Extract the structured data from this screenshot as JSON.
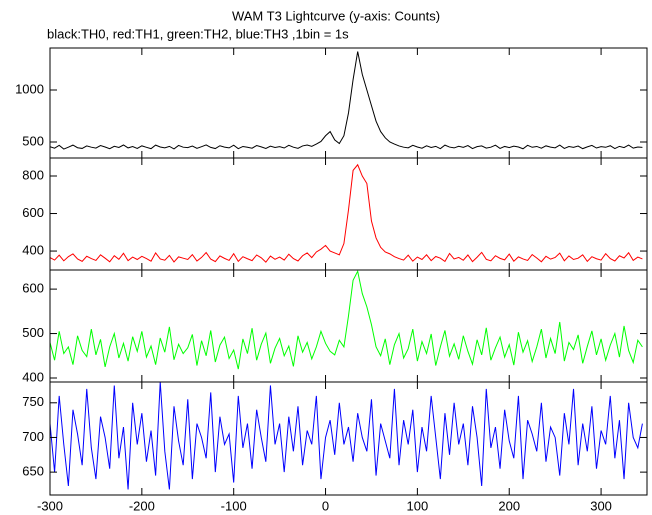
{
  "title": "WAM T3 Lightcurve (y-axis: Counts)",
  "subtitle": "black:TH0, red:TH1, green:TH2, blue:TH3 ,1bin = 1s",
  "chart_data": [
    {
      "type": "line",
      "color": "#000000",
      "xlim": [
        -300,
        350
      ],
      "ylim": [
        346,
        1404
      ],
      "yticks": [
        500,
        1000
      ],
      "x": [
        -300,
        -295,
        -290,
        -285,
        -280,
        -275,
        -270,
        -265,
        -260,
        -255,
        -250,
        -245,
        -240,
        -235,
        -230,
        -225,
        -220,
        -215,
        -210,
        -205,
        -200,
        -195,
        -190,
        -185,
        -180,
        -175,
        -170,
        -165,
        -160,
        -155,
        -150,
        -145,
        -140,
        -135,
        -130,
        -125,
        -120,
        -115,
        -110,
        -105,
        -100,
        -95,
        -90,
        -85,
        -80,
        -75,
        -70,
        -65,
        -60,
        -55,
        -50,
        -45,
        -40,
        -35,
        -30,
        -25,
        -20,
        -15,
        -10,
        -5,
        0,
        5,
        10,
        15,
        20,
        25,
        30,
        35,
        40,
        45,
        50,
        55,
        60,
        65,
        70,
        75,
        80,
        85,
        90,
        95,
        100,
        105,
        110,
        115,
        120,
        125,
        130,
        135,
        140,
        145,
        150,
        155,
        160,
        165,
        170,
        175,
        180,
        185,
        190,
        195,
        200,
        205,
        210,
        215,
        220,
        225,
        230,
        235,
        240,
        245,
        250,
        255,
        260,
        265,
        270,
        275,
        280,
        285,
        290,
        295,
        300,
        305,
        310,
        315,
        320,
        325,
        330,
        335,
        340,
        345
      ],
      "values": [
        455,
        440,
        468,
        432,
        450,
        470,
        445,
        438,
        462,
        450,
        441,
        466,
        452,
        435,
        459,
        447,
        471,
        443,
        456,
        438,
        463,
        449,
        436,
        470,
        452,
        444,
        458,
        433,
        467,
        450,
        446,
        461,
        439,
        455,
        472,
        448,
        437,
        464,
        451,
        443,
        469,
        436,
        457,
        449,
        440,
        466,
        453,
        438,
        460,
        447,
        455,
        442,
        468,
        450,
        439,
        462,
        471,
        458,
        480,
        505,
        560,
        600,
        520,
        485,
        560,
        780,
        1100,
        1370,
        1150,
        1000,
        850,
        700,
        600,
        540,
        500,
        480,
        462,
        450,
        444,
        468,
        452,
        440,
        463,
        447,
        458,
        436,
        470,
        451,
        443,
        459,
        448,
        466,
        437,
        455,
        462,
        441,
        450,
        469,
        438,
        457,
        446,
        460,
        452,
        435,
        468,
        449,
        457,
        440,
        463,
        451,
        444,
        470,
        438,
        456,
        448,
        461,
        436,
        453,
        467,
        442,
        455,
        449,
        464,
        437,
        458,
        446,
        470,
        441,
        452,
        448
      ]
    },
    {
      "type": "line",
      "color": "#ff0000",
      "xlim": [
        -300,
        350
      ],
      "ylim": [
        299,
        896
      ],
      "yticks": [
        400,
        600,
        800
      ],
      "x": [
        -300,
        -295,
        -290,
        -285,
        -280,
        -275,
        -270,
        -265,
        -260,
        -255,
        -250,
        -245,
        -240,
        -235,
        -230,
        -225,
        -220,
        -215,
        -210,
        -205,
        -200,
        -195,
        -190,
        -185,
        -180,
        -175,
        -170,
        -165,
        -160,
        -155,
        -150,
        -145,
        -140,
        -135,
        -130,
        -125,
        -120,
        -115,
        -110,
        -105,
        -100,
        -95,
        -90,
        -85,
        -80,
        -75,
        -70,
        -65,
        -60,
        -55,
        -50,
        -45,
        -40,
        -35,
        -30,
        -25,
        -20,
        -15,
        -10,
        -5,
        0,
        5,
        10,
        15,
        20,
        25,
        30,
        35,
        40,
        45,
        50,
        55,
        60,
        65,
        70,
        75,
        80,
        85,
        90,
        95,
        100,
        105,
        110,
        115,
        120,
        125,
        130,
        135,
        140,
        145,
        150,
        155,
        160,
        165,
        170,
        175,
        180,
        185,
        190,
        195,
        200,
        205,
        210,
        215,
        220,
        225,
        230,
        235,
        240,
        245,
        250,
        255,
        260,
        265,
        270,
        275,
        280,
        285,
        290,
        295,
        300,
        305,
        310,
        315,
        320,
        325,
        330,
        335,
        340,
        345
      ],
      "values": [
        365,
        352,
        378,
        348,
        370,
        385,
        358,
        345,
        372,
        360,
        350,
        380,
        362,
        343,
        375,
        356,
        388,
        349,
        368,
        355,
        372,
        360,
        346,
        390,
        358,
        351,
        377,
        342,
        369,
        362,
        355,
        381,
        347,
        366,
        392,
        357,
        344,
        374,
        361,
        350,
        386,
        345,
        370,
        359,
        349,
        379,
        364,
        341,
        373,
        356,
        368,
        352,
        383,
        360,
        347,
        375,
        390,
        365,
        395,
        410,
        430,
        400,
        390,
        380,
        440,
        620,
        830,
        860,
        800,
        760,
        560,
        470,
        420,
        395,
        385,
        370,
        360,
        352,
        378,
        346,
        368,
        355,
        380,
        349,
        371,
        362,
        345,
        387,
        358,
        366,
        351,
        379,
        344,
        367,
        393,
        356,
        348,
        375,
        361,
        353,
        384,
        346,
        369,
        358,
        350,
        381,
        363,
        343,
        372,
        357,
        366,
        389,
        348,
        374,
        355,
        362,
        380,
        345,
        370,
        359,
        352,
        386,
        360,
        347,
        375,
        363,
        391,
        350,
        368,
        358
      ]
    },
    {
      "type": "line",
      "color": "#00ff00",
      "xlim": [
        -300,
        350
      ],
      "ylim": [
        391,
        643
      ],
      "yticks": [
        400,
        500,
        600
      ],
      "x": [
        -300,
        -295,
        -290,
        -285,
        -280,
        -275,
        -270,
        -265,
        -260,
        -255,
        -250,
        -245,
        -240,
        -235,
        -230,
        -225,
        -220,
        -215,
        -210,
        -205,
        -200,
        -195,
        -190,
        -185,
        -180,
        -175,
        -170,
        -165,
        -160,
        -155,
        -150,
        -145,
        -140,
        -135,
        -130,
        -125,
        -120,
        -115,
        -110,
        -105,
        -100,
        -95,
        -90,
        -85,
        -80,
        -75,
        -70,
        -65,
        -60,
        -55,
        -50,
        -45,
        -40,
        -35,
        -30,
        -25,
        -20,
        -15,
        -10,
        -5,
        0,
        5,
        10,
        15,
        20,
        25,
        30,
        35,
        40,
        45,
        50,
        55,
        60,
        65,
        70,
        75,
        80,
        85,
        90,
        95,
        100,
        105,
        110,
        115,
        120,
        125,
        130,
        135,
        140,
        145,
        150,
        155,
        160,
        165,
        170,
        175,
        180,
        185,
        190,
        195,
        200,
        205,
        210,
        215,
        220,
        225,
        230,
        235,
        240,
        245,
        250,
        255,
        260,
        265,
        270,
        275,
        280,
        285,
        290,
        295,
        300,
        305,
        310,
        315,
        320,
        325,
        330,
        335,
        340,
        345
      ],
      "values": [
        480,
        440,
        505,
        455,
        470,
        430,
        495,
        462,
        448,
        510,
        452,
        487,
        425,
        470,
        500,
        445,
        478,
        438,
        493,
        460,
        505,
        447,
        472,
        430,
        490,
        458,
        515,
        441,
        476,
        455,
        468,
        498,
        428,
        484,
        450,
        507,
        436,
        474,
        492,
        444,
        463,
        420,
        488,
        455,
        512,
        440,
        476,
        501,
        433,
        467,
        489,
        450,
        472,
        426,
        495,
        458,
        480,
        443,
        470,
        505,
        478,
        460,
        452,
        485,
        470,
        540,
        620,
        640,
        590,
        560,
        520,
        470,
        450,
        488,
        430,
        475,
        500,
        445,
        466,
        510,
        438,
        482,
        455,
        499,
        428,
        470,
        507,
        449,
        477,
        442,
        495,
        460,
        431,
        486,
        452,
        513,
        440,
        468,
        492,
        447,
        475,
        429,
        503,
        458,
        484,
        437,
        470,
        510,
        445,
        489,
        455,
        526,
        438,
        480,
        464,
        497,
        433,
        471,
        506,
        452,
        488,
        440,
        474,
        500,
        447,
        517,
        462,
        435,
        485,
        470
      ]
    },
    {
      "type": "line",
      "color": "#0000ff",
      "xlim": [
        -300,
        350
      ],
      "ylim": [
        617,
        780
      ],
      "yticks": [
        650,
        700,
        750
      ],
      "xticks": [
        -300,
        -200,
        -100,
        0,
        100,
        200,
        300
      ],
      "x": [
        -300,
        -295,
        -290,
        -285,
        -280,
        -275,
        -270,
        -265,
        -260,
        -255,
        -250,
        -245,
        -240,
        -235,
        -230,
        -225,
        -220,
        -215,
        -210,
        -205,
        -200,
        -195,
        -190,
        -185,
        -180,
        -175,
        -170,
        -165,
        -160,
        -155,
        -150,
        -145,
        -140,
        -135,
        -130,
        -125,
        -120,
        -115,
        -110,
        -105,
        -100,
        -95,
        -90,
        -85,
        -80,
        -75,
        -70,
        -65,
        -60,
        -55,
        -50,
        -45,
        -40,
        -35,
        -30,
        -25,
        -20,
        -15,
        -10,
        -5,
        0,
        5,
        10,
        15,
        20,
        25,
        30,
        35,
        40,
        45,
        50,
        55,
        60,
        65,
        70,
        75,
        80,
        85,
        90,
        95,
        100,
        105,
        110,
        115,
        120,
        125,
        130,
        135,
        140,
        145,
        150,
        155,
        160,
        165,
        170,
        175,
        180,
        185,
        190,
        195,
        200,
        205,
        210,
        215,
        220,
        225,
        230,
        235,
        240,
        245,
        250,
        255,
        260,
        265,
        270,
        275,
        280,
        285,
        290,
        295,
        300,
        305,
        310,
        315,
        320,
        325,
        330,
        335,
        340,
        345
      ],
      "values": [
        720,
        650,
        760,
        690,
        630,
        740,
        705,
        660,
        770,
        685,
        640,
        730,
        700,
        655,
        775,
        670,
        715,
        625,
        750,
        690,
        735,
        665,
        710,
        645,
        780,
        680,
        625,
        745,
        695,
        660,
        755,
        640,
        720,
        700,
        670,
        765,
        650,
        730,
        690,
        705,
        635,
        760,
        685,
        720,
        655,
        740,
        700,
        665,
        775,
        690,
        720,
        650,
        730,
        680,
        745,
        660,
        710,
        690,
        760,
        640,
        700,
        725,
        675,
        750,
        690,
        715,
        665,
        735,
        700,
        680,
        755,
        645,
        720,
        695,
        670,
        770,
        660,
        725,
        690,
        740,
        650,
        715,
        680,
        760,
        700,
        640,
        735,
        675,
        750,
        690,
        720,
        660,
        745,
        700,
        630,
        770,
        685,
        715,
        655,
        740,
        695,
        670,
        760,
        640,
        725,
        705,
        680,
        750,
        665,
        715,
        700,
        645,
        735,
        690,
        770,
        660,
        720,
        680,
        745,
        655,
        710,
        690,
        760,
        670,
        725,
        640,
        750,
        700,
        685,
        720
      ]
    }
  ]
}
